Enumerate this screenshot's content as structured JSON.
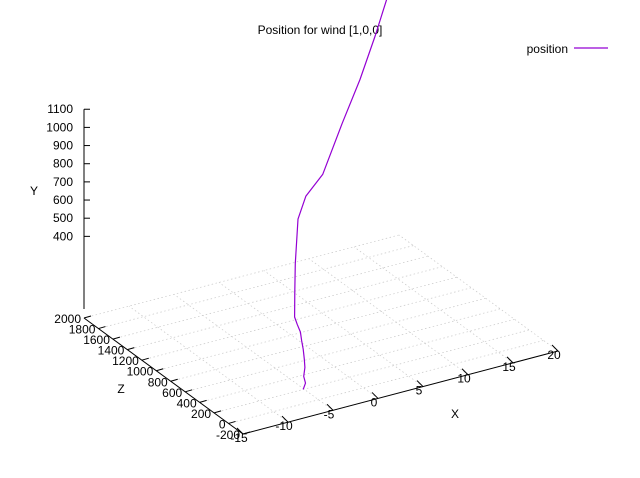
{
  "chart_data": {
    "type": "line3d",
    "title": "Position for wind [1,0,0]",
    "xlabel": "X",
    "ylabel": "Y",
    "zlabel": "Z",
    "xlim": [
      -15,
      20
    ],
    "zlim": [
      -200,
      2000
    ],
    "ylim": [
      0,
      1100
    ],
    "x_ticks": [
      -15,
      -10,
      -5,
      0,
      5,
      10,
      15,
      20
    ],
    "z_ticks": [
      -200,
      0,
      200,
      400,
      600,
      800,
      1000,
      1200,
      1400,
      1600,
      1800,
      2000
    ],
    "y_ticks": [
      400,
      500,
      600,
      700,
      800,
      900,
      1000,
      1100
    ],
    "legend_position": "top-right",
    "colors": {
      "series": "#9400d3",
      "grid": "#c8c8c8",
      "axis": "#000000"
    },
    "series": [
      {
        "name": "position",
        "x": [
          -5.1,
          -4.2,
          -3.6,
          -2.5,
          -1.6,
          -0.6,
          0.2,
          1.1,
          1.7,
          2.3,
          3.2,
          4.3,
          5.4,
          7.0,
          9.2,
          11.6,
          13.9,
          16.0,
          18.7
        ],
        "z": [
          200,
          280,
          380,
          500,
          620,
          760,
          880,
          1010,
          1130,
          1240,
          1350,
          1480,
          1580,
          1670,
          1710,
          1740,
          1780,
          1830,
          1900
        ],
        "y": [
          0,
          0,
          0,
          0,
          0,
          0,
          0,
          0,
          0,
          0,
          100,
          200,
          400,
          480,
          560,
          800,
          1000,
          1200,
          1480
        ]
      }
    ]
  }
}
